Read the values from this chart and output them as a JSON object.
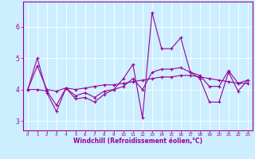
{
  "bg_color": "#cceeff",
  "line_color": "#990099",
  "grid_color": "#ffffff",
  "xlabel": "Windchill (Refroidissement éolien,°C)",
  "xlabel_color": "#990099",
  "xtick_color": "#990099",
  "ytick_color": "#990099",
  "xlim": [
    -0.5,
    23.5
  ],
  "ylim": [
    2.7,
    6.8
  ],
  "yticks": [
    3,
    4,
    5,
    6
  ],
  "xticks": [
    0,
    1,
    2,
    3,
    4,
    5,
    6,
    7,
    8,
    9,
    10,
    11,
    12,
    13,
    14,
    15,
    16,
    17,
    18,
    19,
    20,
    21,
    22,
    23
  ],
  "series1_x": [
    0,
    1,
    2,
    3,
    4,
    5,
    6,
    7,
    8,
    9,
    10,
    11,
    12,
    13,
    14,
    15,
    16,
    17,
    18,
    19,
    20,
    21,
    22,
    23
  ],
  "series1_y": [
    4.0,
    5.0,
    3.9,
    3.3,
    4.05,
    3.7,
    3.75,
    3.6,
    3.85,
    4.0,
    4.35,
    4.8,
    3.1,
    6.45,
    5.3,
    5.3,
    5.65,
    4.55,
    4.35,
    3.6,
    3.6,
    4.55,
    3.95,
    4.3
  ],
  "series2_x": [
    0,
    1,
    2,
    3,
    4,
    5,
    6,
    7,
    8,
    9,
    10,
    11,
    12,
    13,
    14,
    15,
    16,
    17,
    18,
    19,
    20,
    21,
    22,
    23
  ],
  "series2_y": [
    4.0,
    4.75,
    4.0,
    3.95,
    4.05,
    4.0,
    4.05,
    4.1,
    4.15,
    4.15,
    4.2,
    4.25,
    4.3,
    4.35,
    4.4,
    4.4,
    4.45,
    4.45,
    4.4,
    4.35,
    4.3,
    4.25,
    4.2,
    4.2
  ],
  "series3_x": [
    0,
    1,
    2,
    3,
    4,
    5,
    6,
    7,
    8,
    9,
    10,
    11,
    12,
    13,
    14,
    15,
    16,
    17,
    18,
    19,
    20,
    21,
    22,
    23
  ],
  "series3_y": [
    4.0,
    4.0,
    3.95,
    3.5,
    4.05,
    3.8,
    3.9,
    3.75,
    3.95,
    4.0,
    4.1,
    4.35,
    4.0,
    4.55,
    4.65,
    4.65,
    4.7,
    4.55,
    4.45,
    4.1,
    4.1,
    4.6,
    4.2,
    4.3
  ],
  "marker": "+",
  "markersize": 3,
  "linewidth": 0.8,
  "markeredgewidth": 0.8,
  "xlabel_fontsize": 5.5,
  "xtick_fontsize": 4.0,
  "ytick_fontsize": 5.5
}
